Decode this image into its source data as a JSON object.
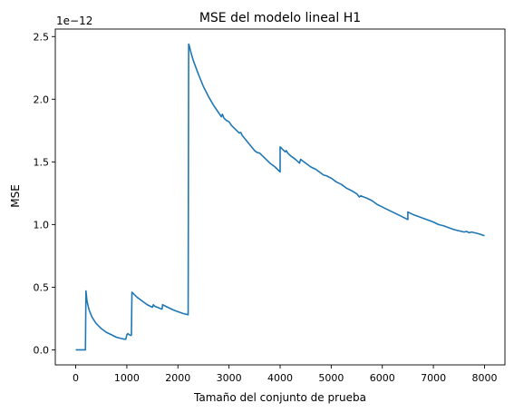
{
  "chart_data": {
    "type": "line",
    "title": "MSE del modelo lineal H1",
    "xlabel": "Tamaño del conjunto de prueba",
    "ylabel": "MSE",
    "y_offset_label": "1e−12",
    "xlim": [
      -400,
      8400
    ],
    "ylim": [
      -0.12,
      2.56
    ],
    "x_ticks": [
      0,
      1000,
      2000,
      3000,
      4000,
      5000,
      6000,
      7000,
      8000
    ],
    "x_tick_labels": [
      "0",
      "1000",
      "2000",
      "3000",
      "4000",
      "5000",
      "6000",
      "7000",
      "8000"
    ],
    "y_ticks": [
      0.0,
      0.5,
      1.0,
      1.5,
      2.0,
      2.5
    ],
    "y_tick_labels": [
      "0.0",
      "0.5",
      "1.0",
      "1.5",
      "2.0",
      "2.5"
    ],
    "grid": false,
    "line_color": "#1f77b4",
    "series": [
      {
        "x": [
          0,
          100,
          190,
          200,
          220,
          260,
          320,
          400,
          500,
          600,
          700,
          800,
          900,
          950,
          980,
          1000,
          1020,
          1050,
          1080,
          1090,
          1100,
          1100,
          1150,
          1200,
          1300,
          1400,
          1500,
          1520,
          1540,
          1560,
          1600,
          1650,
          1690,
          1700,
          1750,
          1800,
          1900,
          2000,
          2100,
          2200,
          2210,
          2220,
          2250,
          2300,
          2400,
          2500,
          2600,
          2700,
          2800,
          2850,
          2870,
          2900,
          2950,
          3000,
          3050,
          3100,
          3150,
          3200,
          3230,
          3260,
          3300,
          3400,
          3500,
          3550,
          3600,
          3650,
          3700,
          3800,
          3900,
          4000,
          4000,
          4050,
          4100,
          4120,
          4150,
          4200,
          4300,
          4380,
          4400,
          4500,
          4600,
          4700,
          4800,
          4850,
          4900,
          5000,
          5100,
          5200,
          5300,
          5400,
          5500,
          5550,
          5580,
          5600,
          5700,
          5800,
          5900,
          6000,
          6100,
          6200,
          6300,
          6400,
          6500,
          6500,
          6600,
          6700,
          6800,
          6900,
          7000,
          7100,
          7200,
          7300,
          7400,
          7500,
          7600,
          7650,
          7700,
          7750,
          7800,
          7900,
          8000
        ],
        "y": [
          0.0,
          0.0,
          0.0,
          0.47,
          0.39,
          0.32,
          0.26,
          0.21,
          0.17,
          0.14,
          0.12,
          0.1,
          0.09,
          0.085,
          0.085,
          0.12,
          0.13,
          0.12,
          0.115,
          0.12,
          0.46,
          0.46,
          0.44,
          0.42,
          0.39,
          0.36,
          0.34,
          0.36,
          0.35,
          0.345,
          0.34,
          0.33,
          0.325,
          0.36,
          0.35,
          0.34,
          0.32,
          0.305,
          0.29,
          0.28,
          2.44,
          2.43,
          2.38,
          2.31,
          2.2,
          2.1,
          2.02,
          1.95,
          1.89,
          1.86,
          1.88,
          1.85,
          1.83,
          1.82,
          1.79,
          1.77,
          1.75,
          1.73,
          1.735,
          1.71,
          1.69,
          1.64,
          1.59,
          1.575,
          1.57,
          1.55,
          1.53,
          1.49,
          1.46,
          1.42,
          1.62,
          1.6,
          1.58,
          1.59,
          1.57,
          1.55,
          1.52,
          1.49,
          1.52,
          1.49,
          1.46,
          1.44,
          1.41,
          1.395,
          1.39,
          1.37,
          1.34,
          1.32,
          1.29,
          1.27,
          1.245,
          1.22,
          1.23,
          1.225,
          1.21,
          1.19,
          1.16,
          1.14,
          1.12,
          1.1,
          1.08,
          1.06,
          1.04,
          1.1,
          1.08,
          1.065,
          1.05,
          1.035,
          1.02,
          1.0,
          0.99,
          0.975,
          0.96,
          0.95,
          0.94,
          0.945,
          0.935,
          0.94,
          0.935,
          0.925,
          0.91
        ]
      }
    ]
  }
}
